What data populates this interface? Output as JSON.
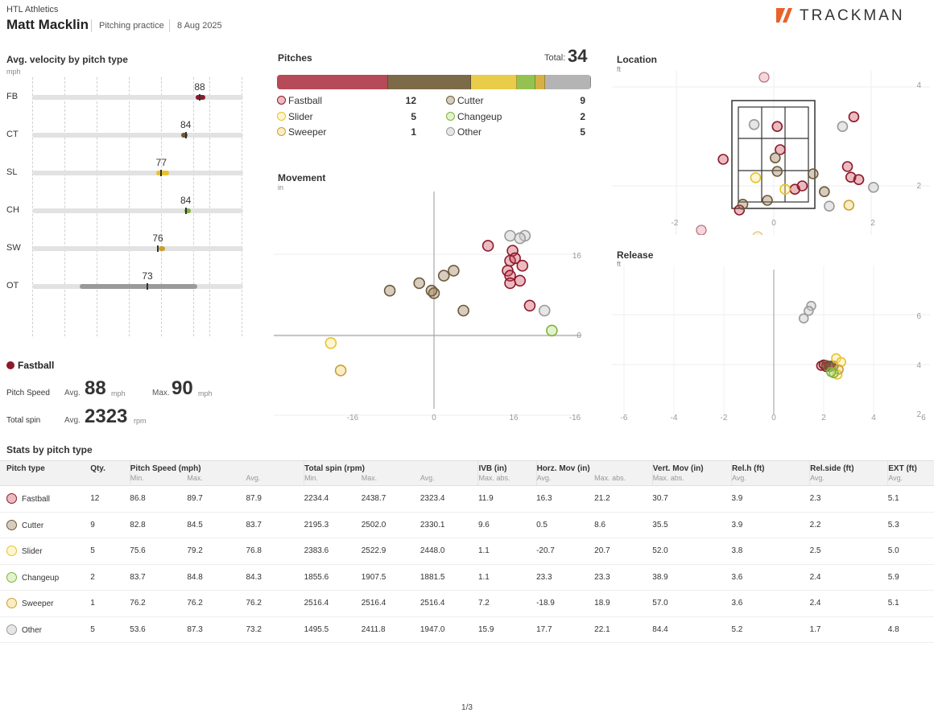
{
  "header": {
    "org": "HTL Athletics",
    "player": "Matt Macklin",
    "session": "Pitching practice",
    "date": "8 Aug 2025",
    "logo": "TRACKMAN"
  },
  "colors": {
    "Fastball": "#8b1a2a",
    "Cutter": "#6b5a3a",
    "Slider": "#e6c22e",
    "Changeup": "#7fb33a",
    "Sweeper": "#c8a032",
    "Other": "#9a9a9a"
  },
  "velocity": {
    "title": "Avg. velocity by pitch type",
    "unit": "mph",
    "rows": [
      {
        "code": "FB",
        "value": "88"
      },
      {
        "code": "CT",
        "value": "84"
      },
      {
        "code": "SL",
        "value": "77"
      },
      {
        "code": "CH",
        "value": "84"
      },
      {
        "code": "SW",
        "value": "76"
      },
      {
        "code": "OT",
        "value": "73"
      }
    ]
  },
  "pitches": {
    "title": "Pitches",
    "total_label": "Total:",
    "total": "34",
    "items": [
      {
        "name": "Fastball",
        "count": "12"
      },
      {
        "name": "Cutter",
        "count": "9"
      },
      {
        "name": "Slider",
        "count": "5"
      },
      {
        "name": "Changeup",
        "count": "2"
      },
      {
        "name": "Sweeper",
        "count": "1"
      },
      {
        "name": "Other",
        "count": "5"
      }
    ]
  },
  "movement": {
    "title": "Movement",
    "unit": "in",
    "x_ticks": [
      "-16",
      "0",
      "16",
      "-16"
    ],
    "y_ticks": [
      "16",
      "-0"
    ]
  },
  "location": {
    "title": "Location",
    "unit": "ft",
    "x_ticks": [
      "-2",
      "0",
      "2"
    ],
    "y_ticks": [
      "4",
      "2"
    ]
  },
  "release": {
    "title": "Release",
    "unit": "ft",
    "x_ticks": [
      "-6",
      "-4",
      "-2",
      "0",
      "2",
      "4",
      "6"
    ],
    "y_ticks": [
      "6",
      "4",
      "2"
    ]
  },
  "selected": {
    "name": "Fastball",
    "speed_label": "Pitch Speed",
    "avg_label": "Avg.",
    "max_label": "Max.",
    "speed_avg": "88",
    "speed_max": "90",
    "speed_unit": "mph",
    "spin_label": "Total spin",
    "spin_avg": "2323",
    "spin_unit": "rpm"
  },
  "stats": {
    "title": "Stats by pitch type",
    "groups": [
      "Pitch type",
      "Qty.",
      "Pitch Speed (mph)",
      "Total spin (rpm)",
      "IVB (in)",
      "Horz. Mov (in)",
      "Vert. Mov (in)",
      "Rel.h (ft)",
      "Rel.side (ft)",
      "EXT (ft)"
    ],
    "sub": [
      "Min.",
      "Max.",
      "Avg.",
      "Min.",
      "Max.",
      "Avg.",
      "Max. abs.",
      "Avg.",
      "Max. abs.",
      "Max. abs.",
      "Avg.",
      "Avg.",
      "Avg."
    ],
    "rows": [
      {
        "name": "Fastball",
        "qty": "12",
        "v": [
          "86.8",
          "89.7",
          "87.9",
          "2234.4",
          "2438.7",
          "2323.4",
          "11.9",
          "16.3",
          "21.2",
          "30.7",
          "3.9",
          "2.3",
          "5.1"
        ]
      },
      {
        "name": "Cutter",
        "qty": "9",
        "v": [
          "82.8",
          "84.5",
          "83.7",
          "2195.3",
          "2502.0",
          "2330.1",
          "9.6",
          "0.5",
          "8.6",
          "35.5",
          "3.9",
          "2.2",
          "5.3"
        ]
      },
      {
        "name": "Slider",
        "qty": "5",
        "v": [
          "75.6",
          "79.2",
          "76.8",
          "2383.6",
          "2522.9",
          "2448.0",
          "1.1",
          "-20.7",
          "20.7",
          "52.0",
          "3.8",
          "2.5",
          "5.0"
        ]
      },
      {
        "name": "Changeup",
        "qty": "2",
        "v": [
          "83.7",
          "84.8",
          "84.3",
          "1855.6",
          "1907.5",
          "1881.5",
          "1.1",
          "23.3",
          "23.3",
          "38.9",
          "3.6",
          "2.4",
          "5.9"
        ]
      },
      {
        "name": "Sweeper",
        "qty": "1",
        "v": [
          "76.2",
          "76.2",
          "76.2",
          "2516.4",
          "2516.4",
          "2516.4",
          "7.2",
          "-18.9",
          "18.9",
          "57.0",
          "3.6",
          "2.4",
          "5.1"
        ]
      },
      {
        "name": "Other",
        "qty": "5",
        "v": [
          "53.6",
          "87.3",
          "73.2",
          "1495.5",
          "2411.8",
          "1947.0",
          "15.9",
          "17.7",
          "22.1",
          "84.4",
          "5.2",
          "1.7",
          "4.8"
        ]
      }
    ]
  },
  "chart_data": [
    {
      "type": "scatter",
      "title": "Movement",
      "xlabel": "in",
      "ylabel": "in",
      "series": [
        {
          "name": "Fastball",
          "points": [
            [
              11,
              18
            ],
            [
              16,
              17
            ],
            [
              18,
              14
            ],
            [
              17.5,
              11
            ],
            [
              15,
              13
            ],
            [
              15.5,
              15
            ],
            [
              16.5,
              15.5
            ],
            [
              15.5,
              12
            ],
            [
              15.5,
              10.5
            ],
            [
              19.5,
              6
            ]
          ]
        },
        {
          "name": "Cutter",
          "points": [
            [
              -9,
              9
            ],
            [
              -3,
              10.5
            ],
            [
              0,
              8.5
            ],
            [
              -0.5,
              9
            ],
            [
              2,
              12
            ],
            [
              4,
              13
            ],
            [
              6,
              5
            ]
          ]
        },
        {
          "name": "Slider",
          "points": [
            [
              -21,
              -1.5
            ]
          ]
        },
        {
          "name": "Sweeper",
          "points": [
            [
              -19,
              -7
            ]
          ]
        },
        {
          "name": "Changeup",
          "points": [
            [
              24,
              1
            ]
          ]
        },
        {
          "name": "Other",
          "points": [
            [
              15.5,
              20
            ],
            [
              18.5,
              20
            ],
            [
              17.5,
              19.5
            ],
            [
              22.5,
              5
            ]
          ]
        }
      ]
    },
    {
      "type": "scatter",
      "title": "Location",
      "xlabel": "ft",
      "ylabel": "ft",
      "series": [
        {
          "name": "Fastball",
          "points": [
            [
              0.07,
              3.23
            ],
            [
              0.13,
              2.75
            ],
            [
              1.63,
              3.43
            ],
            [
              1.57,
              2.18
            ],
            [
              1.73,
              2.13
            ],
            [
              -0.7,
              1.5
            ],
            [
              -1.03,
              2.55
            ],
            [
              0.43,
              1.93
            ],
            [
              0.58,
              2.0
            ],
            [
              1.5,
              2.4
            ]
          ]
        },
        {
          "name": "Cutter",
          "points": [
            [
              0.03,
              2.58
            ],
            [
              0.07,
              2.3
            ],
            [
              0.8,
              2.25
            ],
            [
              -0.13,
              1.7
            ],
            [
              1.03,
              1.88
            ],
            [
              -0.63,
              1.62
            ]
          ]
        },
        {
          "name": "Slider",
          "points": [
            [
              -0.37,
              2.17
            ],
            [
              0.23,
              1.93
            ]
          ]
        },
        {
          "name": "Sweeper",
          "points": [
            [
              1.53,
              1.6
            ]
          ]
        },
        {
          "name": "Other",
          "points": [
            [
              -0.4,
              3.27
            ],
            [
              1.4,
              3.23
            ],
            [
              2.03,
              1.97
            ],
            [
              1.13,
              1.58
            ]
          ]
        }
      ]
    },
    {
      "type": "scatter",
      "title": "Release",
      "xlabel": "ft",
      "ylabel": "ft",
      "series": [
        {
          "name": "Fastball",
          "points": [
            [
              1.9,
              3.95
            ],
            [
              2.0,
              4.0
            ],
            [
              2.2,
              3.95
            ],
            [
              2.1,
              3.9
            ],
            [
              2.3,
              3.95
            ]
          ]
        },
        {
          "name": "Cutter",
          "points": [
            [
              2.1,
              3.98
            ],
            [
              2.25,
              3.9
            ],
            [
              2.4,
              3.95
            ]
          ]
        },
        {
          "name": "Slider",
          "points": [
            [
              2.5,
              4.25
            ],
            [
              2.7,
              4.1
            ],
            [
              2.55,
              3.6
            ]
          ]
        },
        {
          "name": "Sweeper",
          "points": [
            [
              2.6,
              3.8
            ]
          ]
        },
        {
          "name": "Changeup",
          "points": [
            [
              2.4,
              3.65
            ],
            [
              2.3,
              3.7
            ]
          ]
        },
        {
          "name": "Other",
          "points": [
            [
              1.5,
              6.35
            ],
            [
              1.4,
              6.15
            ],
            [
              1.2,
              5.85
            ]
          ]
        }
      ]
    },
    {
      "type": "bar",
      "title": "Avg. velocity by pitch type",
      "ylabel": "mph",
      "categories": [
        "FB",
        "CT",
        "SL",
        "CH",
        "SW",
        "OT"
      ],
      "values": [
        88,
        84,
        77,
        84,
        76,
        73
      ],
      "ranges": [
        [
          86.8,
          89.7
        ],
        [
          82.8,
          84.5
        ],
        [
          75.6,
          79.2
        ],
        [
          83.7,
          84.8
        ],
        [
          76.2,
          76.2
        ],
        [
          53.6,
          87.3
        ]
      ],
      "xlim": [
        40,
        100
      ]
    },
    {
      "type": "bar",
      "title": "Pitches",
      "categories": [
        "Fastball",
        "Cutter",
        "Slider",
        "Changeup",
        "Sweeper",
        "Other"
      ],
      "values": [
        12,
        9,
        5,
        2,
        1,
        5
      ]
    }
  ]
}
